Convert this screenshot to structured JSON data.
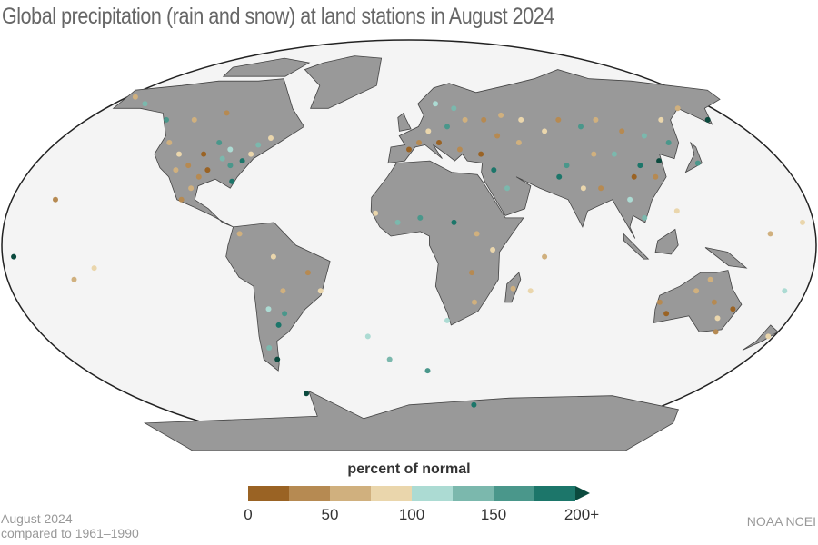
{
  "title": "Global precipitation (rain and snow) at land stations in August 2024",
  "legend": {
    "title": "percent of normal",
    "ticks": [
      "0",
      "50",
      "100",
      "150",
      "200+"
    ],
    "colors": [
      "#9a6324",
      "#b68a52",
      "#d0b07e",
      "#ead6ac",
      "#acdbd3",
      "#7bb8ad",
      "#4a978b",
      "#1c766a",
      "#0b4a3e"
    ]
  },
  "footer": {
    "line1": "August 2024",
    "line2": "compared to 1961–1990",
    "credit": "NOAA NCEI"
  },
  "map": {
    "ocean_color": "#f4f4f4",
    "land_color": "#999999",
    "border_color": "#444444"
  },
  "chart_data": {
    "type": "scatter",
    "description_units": "station longitude, latitude, color bin (0=0-25%, 7=175-200%, 8=200%+)",
    "stations": [
      [
        -100,
        40,
        0
      ],
      [
        -105,
        35,
        1
      ],
      [
        -95,
        33,
        0
      ],
      [
        -110,
        33,
        2
      ],
      [
        -90,
        38,
        5
      ],
      [
        -85,
        35,
        6
      ],
      [
        -80,
        37,
        7
      ],
      [
        -77,
        40,
        3
      ],
      [
        -88,
        42,
        4
      ],
      [
        -98,
        30,
        1
      ],
      [
        -112,
        40,
        3
      ],
      [
        -120,
        45,
        2
      ],
      [
        -95,
        45,
        6
      ],
      [
        -75,
        44,
        5
      ],
      [
        -82,
        28,
        7
      ],
      [
        -100,
        25,
        2
      ],
      [
        -103,
        20,
        1
      ],
      [
        -70,
        47,
        3
      ],
      [
        -115,
        55,
        2
      ],
      [
        -100,
        58,
        1
      ],
      [
        -130,
        55,
        6
      ],
      [
        -150,
        62,
        5
      ],
      [
        -160,
        65,
        2
      ],
      [
        -75,
        5,
        2
      ],
      [
        -60,
        -5,
        3
      ],
      [
        -45,
        -12,
        1
      ],
      [
        -58,
        -30,
        6
      ],
      [
        -62,
        -35,
        7
      ],
      [
        -65,
        -28,
        4
      ],
      [
        -70,
        -45,
        5
      ],
      [
        -68,
        -50,
        8
      ],
      [
        -57,
        -20,
        2
      ],
      [
        -40,
        -20,
        3
      ],
      [
        0,
        42,
        0
      ],
      [
        5,
        45,
        1
      ],
      [
        15,
        45,
        0
      ],
      [
        25,
        42,
        1
      ],
      [
        35,
        40,
        0
      ],
      [
        10,
        50,
        3
      ],
      [
        20,
        52,
        6
      ],
      [
        30,
        55,
        2
      ],
      [
        40,
        55,
        1
      ],
      [
        50,
        57,
        2
      ],
      [
        60,
        55,
        3
      ],
      [
        25,
        60,
        5
      ],
      [
        15,
        62,
        4
      ],
      [
        45,
        48,
        1
      ],
      [
        55,
        45,
        2
      ],
      [
        70,
        50,
        3
      ],
      [
        80,
        55,
        1
      ],
      [
        90,
        52,
        6
      ],
      [
        100,
        55,
        2
      ],
      [
        110,
        50,
        1
      ],
      [
        120,
        48,
        5
      ],
      [
        130,
        45,
        6
      ],
      [
        135,
        55,
        3
      ],
      [
        150,
        60,
        2
      ],
      [
        110,
        35,
        7
      ],
      [
        115,
        30,
        1
      ],
      [
        105,
        30,
        0
      ],
      [
        120,
        37,
        8
      ],
      [
        100,
        40,
        5
      ],
      [
        90,
        40,
        2
      ],
      [
        75,
        35,
        6
      ],
      [
        70,
        30,
        7
      ],
      [
        80,
        25,
        3
      ],
      [
        88,
        25,
        1
      ],
      [
        100,
        20,
        4
      ],
      [
        105,
        12,
        5
      ],
      [
        120,
        15,
        3
      ],
      [
        138,
        36,
        6
      ],
      [
        160,
        55,
        8
      ],
      [
        -15,
        14,
        3
      ],
      [
        -5,
        10,
        5
      ],
      [
        5,
        12,
        6
      ],
      [
        20,
        10,
        7
      ],
      [
        30,
        5,
        2
      ],
      [
        37,
        -2,
        3
      ],
      [
        28,
        -12,
        1
      ],
      [
        30,
        -25,
        2
      ],
      [
        18,
        -33,
        4
      ],
      [
        47,
        -19,
        2
      ],
      [
        45,
        25,
        5
      ],
      [
        40,
        33,
        7
      ],
      [
        55,
        -20,
        3
      ],
      [
        115,
        -25,
        1
      ],
      [
        120,
        -30,
        0
      ],
      [
        130,
        -20,
        2
      ],
      [
        140,
        -25,
        1
      ],
      [
        145,
        -32,
        3
      ],
      [
        150,
        -28,
        0
      ],
      [
        148,
        -38,
        1
      ],
      [
        135,
        -15,
        2
      ],
      [
        175,
        -40,
        3
      ],
      [
        170,
        -20,
        4
      ],
      [
        -150,
        -15,
        2
      ],
      [
        -140,
        -10,
        3
      ],
      [
        -160,
        20,
        1
      ],
      [
        -175,
        -5,
        8
      ],
      [
        -20,
        -40,
        4
      ],
      [
        -10,
        -50,
        5
      ],
      [
        10,
        -55,
        6
      ],
      [
        60,
        -5,
        2
      ],
      [
        160,
        5,
        2
      ],
      [
        175,
        10,
        3
      ],
      [
        40,
        -70,
        7
      ],
      [
        -60,
        -65,
        8
      ]
    ]
  }
}
